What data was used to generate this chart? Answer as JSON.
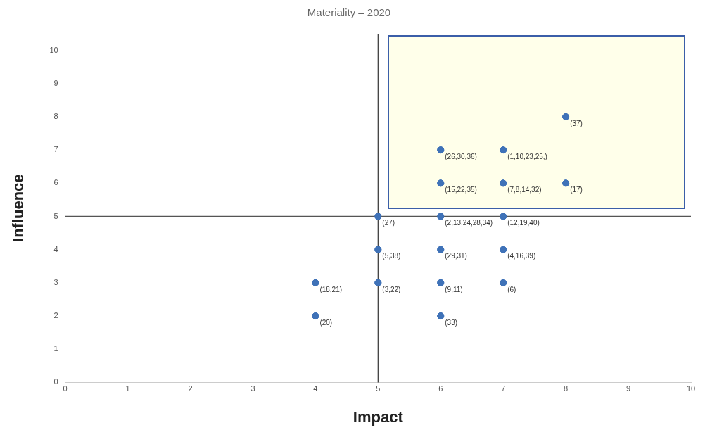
{
  "chart_data": {
    "type": "scatter",
    "title": "Materiality – 2020",
    "xlabel": "Impact",
    "ylabel": "Influence",
    "x": [
      4,
      4,
      5,
      5,
      5,
      6,
      6,
      6,
      6,
      6,
      6,
      7,
      7,
      7,
      7,
      7,
      8,
      8
    ],
    "values": [
      3,
      2,
      5,
      4,
      3,
      7,
      6,
      5,
      4,
      3,
      2,
      7,
      6,
      5,
      4,
      3,
      8,
      6
    ],
    "annotations": [
      {
        "text": "(18,21)",
        "x": 4,
        "y": 3
      },
      {
        "text": "(20)",
        "x": 4,
        "y": 2
      },
      {
        "text": "(27)",
        "x": 5,
        "y": 5
      },
      {
        "text": "(5,38)",
        "x": 5,
        "y": 4
      },
      {
        "text": "(3,22)",
        "x": 5,
        "y": 3
      },
      {
        "text": "(26,30,36)",
        "x": 6,
        "y": 7
      },
      {
        "text": "(15,22,35)",
        "x": 6,
        "y": 6
      },
      {
        "text": "(2,13,24,28,34)",
        "x": 6,
        "y": 5
      },
      {
        "text": "(29,31)",
        "x": 6,
        "y": 4
      },
      {
        "text": "(9,11)",
        "x": 6,
        "y": 3
      },
      {
        "text": "(33)",
        "x": 6,
        "y": 2
      },
      {
        "text": "(1,10,23,25,)",
        "x": 7,
        "y": 7
      },
      {
        "text": "(7,8,14,32)",
        "x": 7,
        "y": 6
      },
      {
        "text": "(12,19,40)",
        "x": 7,
        "y": 5
      },
      {
        "text": "(4,16,39)",
        "x": 7,
        "y": 4
      },
      {
        "text": "(6)",
        "x": 7,
        "y": 3
      },
      {
        "text": "(37)",
        "x": 8,
        "y": 8
      },
      {
        "text": "(17)",
        "x": 8,
        "y": 6
      }
    ],
    "color": "#3f72b8",
    "marker": "circle",
    "xlim": [
      0,
      10
    ],
    "xticks": [
      0,
      1,
      2,
      3,
      4,
      5,
      6,
      7,
      8,
      9,
      10
    ],
    "ylim": [
      0,
      10.5
    ],
    "yticks": [
      0,
      1,
      2,
      3,
      4,
      5,
      6,
      7,
      8,
      9,
      10
    ],
    "grid": false,
    "legend": false,
    "ref_lines": [
      {
        "axis": "x",
        "value": 5,
        "color": "#404040"
      },
      {
        "axis": "y",
        "value": 5,
        "color": "#555555"
      }
    ]
  }
}
